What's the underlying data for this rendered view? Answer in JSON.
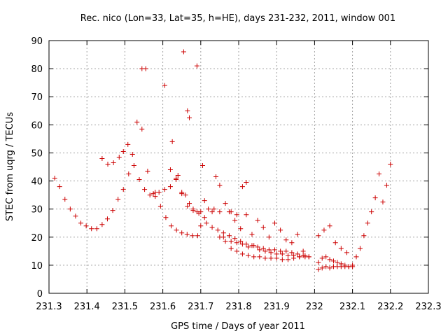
{
  "chart_data": {
    "type": "scatter",
    "title": "Rec. nico (Lon=33, Lat=35, h=HE), days 231-232, 2011, window 001",
    "xlabel": "GPS time / Days of year 2011",
    "ylabel": "STEC from uqrg / TECUs",
    "xlim": [
      231.3,
      232.3
    ],
    "ylim": [
      0,
      90
    ],
    "xticks": [
      "231.3",
      "231.4",
      "231.5",
      "231.6",
      "231.7",
      "231.8",
      "231.9",
      "232",
      "232.1",
      "232.2",
      "232.3"
    ],
    "yticks": [
      "0",
      "10",
      "20",
      "30",
      "40",
      "50",
      "60",
      "70",
      "80",
      "90"
    ],
    "grid": true,
    "marker": "+",
    "color": "#cc0000",
    "series": [
      {
        "x": [
          231.315,
          231.328,
          231.342,
          231.356,
          231.37,
          231.384,
          231.398,
          231.412,
          231.426,
          231.44,
          231.454,
          231.468,
          231.482,
          231.496,
          231.51,
          231.524,
          231.538,
          231.552,
          231.566,
          231.58,
          231.594,
          231.608,
          231.622,
          231.636,
          231.65,
          231.664,
          231.678,
          231.692,
          231.44,
          231.455,
          231.47,
          231.485,
          231.496,
          231.508,
          231.52,
          231.532,
          231.545,
          231.56,
          231.575,
          231.59,
          231.605,
          231.62,
          231.635,
          231.65,
          231.665,
          231.68,
          231.695,
          231.71,
          231.545,
          231.555,
          231.58,
          231.605,
          231.625,
          231.64,
          231.655,
          231.665,
          231.67,
          231.69,
          231.705,
          231.62,
          231.635,
          231.65,
          231.66,
          231.67,
          231.68,
          231.69,
          231.7,
          231.71,
          231.72,
          231.73,
          231.74,
          231.75,
          231.735,
          231.75,
          231.765,
          231.78,
          231.795,
          231.81,
          231.82,
          231.76,
          231.775,
          231.79,
          231.805,
          231.82,
          231.835,
          231.85,
          231.865,
          231.88,
          231.895,
          231.91,
          231.925,
          231.94,
          231.955,
          231.97,
          231.985,
          231.78,
          231.795,
          231.81,
          231.825,
          231.84,
          231.855,
          231.87,
          231.885,
          231.9,
          231.915,
          231.93,
          231.945,
          231.96,
          231.975,
          231.75,
          231.765,
          231.78,
          231.795,
          231.81,
          231.825,
          231.84,
          231.855,
          231.87,
          231.885,
          231.9,
          231.915,
          231.93,
          231.945,
          231.96,
          231.975,
          231.7,
          231.715,
          231.73,
          231.745,
          231.76,
          231.775,
          231.79,
          231.805,
          231.82,
          231.835,
          231.85,
          231.865,
          231.88,
          231.895,
          231.91,
          231.925,
          231.94,
          231.955,
          231.97,
          231.985,
          232.01,
          232.02,
          232.03,
          232.04,
          232.05,
          232.06,
          232.07,
          232.08,
          232.09,
          232.1,
          232.01,
          232.02,
          232.03,
          232.04,
          232.05,
          232.06,
          232.07,
          232.08,
          232.09,
          232.1,
          232.11,
          232.12,
          232.13,
          232.14,
          232.15,
          232.16,
          232.17,
          232.18,
          232.19,
          232.2,
          232.01,
          232.025,
          232.04,
          232.055,
          232.07,
          232.085
        ],
        "y": [
          41.0,
          38.0,
          33.5,
          30.0,
          27.5,
          25.0,
          24.0,
          23.0,
          23.0,
          24.5,
          26.5,
          29.5,
          33.5,
          37.0,
          42.5,
          45.5,
          40.5,
          37.0,
          35.0,
          34.5,
          31.0,
          27.0,
          24.0,
          22.5,
          21.5,
          21.0,
          20.5,
          20.5,
          48.0,
          46.0,
          46.5,
          48.5,
          50.5,
          53.0,
          49.5,
          61.0,
          58.5,
          43.5,
          35.5,
          36.0,
          37.0,
          38.0,
          40.5,
          35.5,
          31.0,
          29.5,
          28.5,
          27.0,
          80.0,
          80.0,
          36.0,
          74.0,
          54.0,
          42.0,
          86.0,
          65.0,
          62.5,
          81.0,
          45.5,
          44.0,
          41.0,
          36.0,
          35.0,
          32.0,
          30.0,
          29.0,
          29.0,
          33.0,
          30.0,
          29.0,
          41.5,
          38.5,
          30.0,
          29.0,
          32.0,
          29.0,
          28.0,
          38.0,
          39.5,
          20.0,
          29.0,
          26.0,
          23.0,
          28.0,
          21.0,
          26.0,
          23.5,
          20.0,
          25.0,
          22.5,
          19.0,
          18.0,
          21.0,
          15.0,
          13.0,
          18.5,
          18.0,
          17.5,
          16.5,
          17.0,
          15.5,
          15.0,
          14.5,
          14.0,
          14.0,
          13.5,
          13.5,
          13.0,
          13.0,
          20.0,
          18.5,
          16.0,
          15.0,
          14.0,
          13.5,
          13.0,
          13.0,
          12.5,
          12.5,
          12.5,
          12.0,
          12.0,
          12.5,
          13.0,
          13.5,
          24.0,
          25.0,
          23.5,
          22.5,
          21.5,
          20.5,
          19.5,
          18.5,
          17.5,
          17.0,
          16.5,
          16.0,
          15.5,
          15.5,
          15.0,
          15.0,
          14.5,
          14.0,
          13.5,
          13.0,
          8.5,
          9.0,
          9.5,
          9.0,
          9.5,
          9.5,
          9.5,
          9.5,
          9.5,
          9.5,
          11.0,
          12.5,
          13.0,
          12.0,
          11.5,
          11.0,
          10.5,
          10.0,
          9.5,
          10.0,
          13.0,
          16.0,
          20.5,
          25.0,
          29.0,
          34.0,
          42.5,
          32.5,
          38.5,
          46.0,
          20.5,
          22.5,
          24.0,
          18.0,
          16.0,
          14.5
        ]
      }
    ]
  }
}
